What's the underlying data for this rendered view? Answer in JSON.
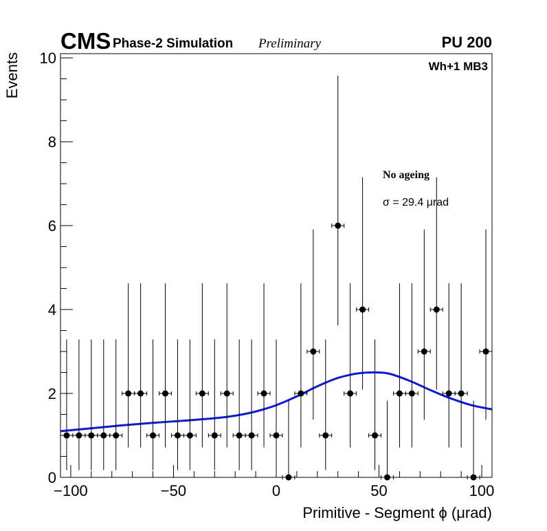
{
  "chart_data": {
    "type": "scatter",
    "header": {
      "experiment": "CMS",
      "subtitle": "Phase-2 Simulation",
      "status": "Preliminary",
      "pileup": "PU 200"
    },
    "region_label": "Wh+1 MB3",
    "annotations": {
      "config": "No ageing",
      "sigma": "σ = 29.4  μrad"
    },
    "xlabel": "Primitive - Segment ϕ (μrad)",
    "ylabel": "Events",
    "xlim": [
      -105,
      105
    ],
    "ylim": [
      0,
      10.1
    ],
    "x_ticks": [
      -100,
      -50,
      0,
      50,
      100
    ],
    "x_tick_labels": [
      "−100",
      "−50",
      "0",
      "50",
      "100"
    ],
    "y_ticks": [
      0,
      2,
      4,
      6,
      8,
      10
    ],
    "y_tick_labels": [
      "0",
      "2",
      "4",
      "6",
      "8",
      "10"
    ],
    "bin_width": 6,
    "series": [
      {
        "x": [
          -102,
          -96,
          -90,
          -84,
          -78,
          -72,
          -66,
          -60,
          -54,
          -48,
          -42,
          -36,
          -30,
          -24,
          -18,
          -12,
          -6,
          0,
          6,
          12,
          18,
          24,
          30,
          36,
          42,
          48,
          54,
          60,
          66,
          72,
          78,
          84,
          90,
          96,
          102
        ],
        "y": [
          1,
          1,
          1,
          1,
          1,
          2,
          2,
          1,
          2,
          1,
          1,
          2,
          1,
          2,
          1,
          1,
          2,
          1,
          0,
          2,
          3,
          1,
          6,
          2,
          4,
          1,
          0,
          2,
          2,
          3,
          4,
          2,
          2,
          0,
          3
        ]
      }
    ],
    "fit": {
      "x": [
        -105,
        -90,
        -75,
        -60,
        -45,
        -30,
        -20,
        -10,
        0,
        10,
        20,
        30,
        40,
        48,
        55,
        65,
        75,
        85,
        95,
        105
      ],
      "y": [
        1.1,
        1.17,
        1.24,
        1.3,
        1.35,
        1.41,
        1.47,
        1.57,
        1.72,
        1.93,
        2.17,
        2.37,
        2.48,
        2.5,
        2.47,
        2.3,
        2.08,
        1.88,
        1.72,
        1.62
      ]
    },
    "colors": {
      "points": "#000000",
      "fit": "#0a1ad6",
      "frame": "#000000"
    }
  }
}
